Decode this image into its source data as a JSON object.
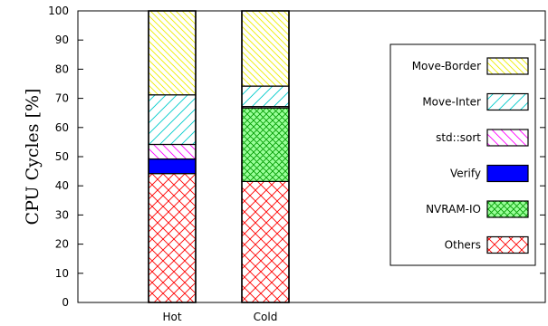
{
  "chart_data": {
    "type": "bar",
    "stacked": true,
    "categories": [
      "Hot",
      "Cold"
    ],
    "ylabel": "CPU Cycles [%]",
    "ylim": [
      0,
      100
    ],
    "yticks": [
      0,
      10,
      20,
      30,
      40,
      50,
      60,
      70,
      80,
      90,
      100
    ],
    "legend_position": "right",
    "series": [
      {
        "name": "Others",
        "values": [
          44.2,
          41.5
        ],
        "color": "#ff0000",
        "pattern": "crosshatch"
      },
      {
        "name": "NVRAM-IO",
        "values": [
          0,
          25.2
        ],
        "color": "#00cc00",
        "fill": "#99ff99",
        "pattern": "crosshatch-dense"
      },
      {
        "name": "Verify",
        "values": [
          5.0,
          0
        ],
        "color": "#0000ff",
        "fill": "#0000ff",
        "pattern": "solid"
      },
      {
        "name": "std::sort",
        "values": [
          5.0,
          0.5
        ],
        "color": "#ff00ff",
        "pattern": "diagonal-down"
      },
      {
        "name": "Move-Inter",
        "values": [
          17.0,
          7.0
        ],
        "color": "#00cccc",
        "pattern": "diagonal-up"
      },
      {
        "name": "Move-Border",
        "values": [
          28.8,
          25.8
        ],
        "color": "#eeee00",
        "pattern": "diagonal-down-dense"
      }
    ]
  }
}
